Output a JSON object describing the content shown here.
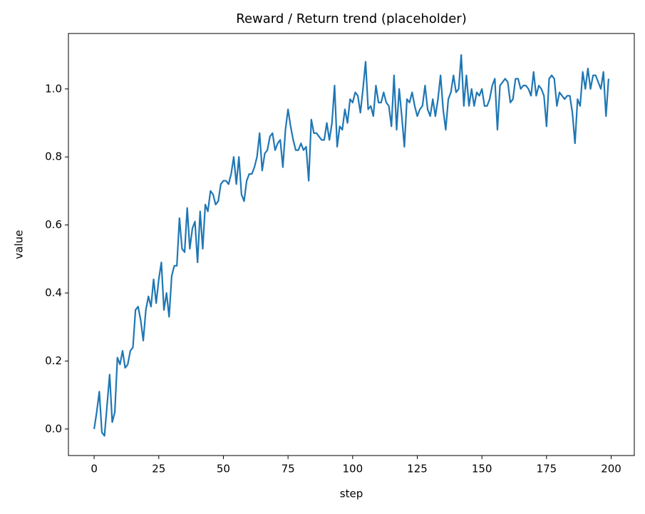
{
  "chart_data": {
    "type": "line",
    "title": "Reward / Return trend (placeholder)",
    "xlabel": "step",
    "ylabel": "value",
    "x": [
      0,
      1,
      2,
      3,
      4,
      5,
      6,
      7,
      8,
      9,
      10,
      11,
      12,
      13,
      14,
      15,
      16,
      17,
      18,
      19,
      20,
      21,
      22,
      23,
      24,
      25,
      26,
      27,
      28,
      29,
      30,
      31,
      32,
      33,
      34,
      35,
      36,
      37,
      38,
      39,
      40,
      41,
      42,
      43,
      44,
      45,
      46,
      47,
      48,
      49,
      50,
      51,
      52,
      53,
      54,
      55,
      56,
      57,
      58,
      59,
      60,
      61,
      62,
      63,
      64,
      65,
      66,
      67,
      68,
      69,
      70,
      71,
      72,
      73,
      74,
      75,
      76,
      77,
      78,
      79,
      80,
      81,
      82,
      83,
      84,
      85,
      86,
      87,
      88,
      89,
      90,
      91,
      92,
      93,
      94,
      95,
      96,
      97,
      98,
      99,
      100,
      101,
      102,
      103,
      104,
      105,
      106,
      107,
      108,
      109,
      110,
      111,
      112,
      113,
      114,
      115,
      116,
      117,
      118,
      119,
      120,
      121,
      122,
      123,
      124,
      125,
      126,
      127,
      128,
      129,
      130,
      131,
      132,
      133,
      134,
      135,
      136,
      137,
      138,
      139,
      140,
      141,
      142,
      143,
      144,
      145,
      146,
      147,
      148,
      149,
      150,
      151,
      152,
      153,
      154,
      155,
      156,
      157,
      158,
      159,
      160,
      161,
      162,
      163,
      164,
      165,
      166,
      167,
      168,
      169,
      170,
      171,
      172,
      173,
      174,
      175,
      176,
      177,
      178,
      179,
      180,
      181,
      182,
      183,
      184,
      185,
      186,
      187,
      188,
      189,
      190,
      191,
      192,
      193,
      194,
      195,
      196,
      197,
      198,
      199
    ],
    "series": [
      {
        "color": "#1f77b4",
        "values": [
          0.0,
          0.05,
          0.11,
          -0.01,
          -0.02,
          0.07,
          0.16,
          0.02,
          0.05,
          0.21,
          0.19,
          0.23,
          0.18,
          0.19,
          0.23,
          0.24,
          0.35,
          0.36,
          0.32,
          0.26,
          0.35,
          0.39,
          0.36,
          0.44,
          0.37,
          0.44,
          0.49,
          0.35,
          0.4,
          0.33,
          0.45,
          0.48,
          0.48,
          0.62,
          0.53,
          0.52,
          0.65,
          0.53,
          0.59,
          0.61,
          0.49,
          0.64,
          0.53,
          0.66,
          0.64,
          0.7,
          0.69,
          0.66,
          0.67,
          0.72,
          0.73,
          0.73,
          0.72,
          0.75,
          0.8,
          0.72,
          0.8,
          0.69,
          0.67,
          0.73,
          0.75,
          0.75,
          0.77,
          0.8,
          0.87,
          0.76,
          0.81,
          0.82,
          0.86,
          0.87,
          0.82,
          0.84,
          0.85,
          0.77,
          0.88,
          0.94,
          0.89,
          0.85,
          0.82,
          0.82,
          0.84,
          0.82,
          0.83,
          0.73,
          0.91,
          0.87,
          0.87,
          0.86,
          0.85,
          0.85,
          0.9,
          0.85,
          0.9,
          1.01,
          0.83,
          0.89,
          0.88,
          0.94,
          0.9,
          0.97,
          0.96,
          0.99,
          0.98,
          0.93,
          1.0,
          1.08,
          0.94,
          0.95,
          0.92,
          1.01,
          0.96,
          0.96,
          0.99,
          0.96,
          0.95,
          0.89,
          1.04,
          0.88,
          1.0,
          0.92,
          0.83,
          0.97,
          0.96,
          0.99,
          0.95,
          0.92,
          0.94,
          0.95,
          1.01,
          0.94,
          0.92,
          0.97,
          0.92,
          0.97,
          1.04,
          0.94,
          0.88,
          0.97,
          0.99,
          1.04,
          0.99,
          1.0,
          1.1,
          0.95,
          1.04,
          0.95,
          1.0,
          0.95,
          0.99,
          0.98,
          1.0,
          0.95,
          0.95,
          0.97,
          1.01,
          1.03,
          0.88,
          1.01,
          1.02,
          1.03,
          1.02,
          0.96,
          0.97,
          1.03,
          1.03,
          1.0,
          1.01,
          1.01,
          1.0,
          0.98,
          1.05,
          0.98,
          1.01,
          1.0,
          0.98,
          0.89,
          1.03,
          1.04,
          1.03,
          0.95,
          0.99,
          0.98,
          0.97,
          0.98,
          0.98,
          0.93,
          0.84,
          0.97,
          0.95,
          1.05,
          1.0,
          1.06,
          1.0,
          1.04,
          1.04,
          1.02,
          1.0,
          1.05,
          0.92,
          1.03
        ]
      }
    ],
    "xlim": [
      -9.95,
      208.95
    ],
    "ylim": [
      -0.078,
      1.163
    ],
    "xticks": [
      0,
      25,
      50,
      75,
      100,
      125,
      150,
      175,
      200
    ],
    "yticks": [
      {
        "value": 0,
        "label": "0.0"
      },
      0.2,
      0.4,
      0.6,
      0.8,
      {
        "value": 1,
        "label": "1.0"
      }
    ]
  }
}
